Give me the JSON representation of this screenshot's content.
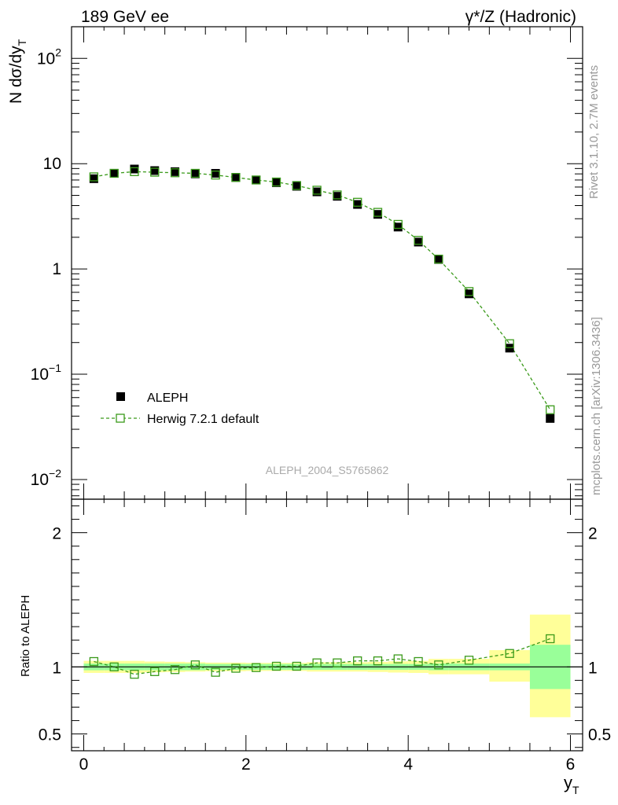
{
  "header": {
    "left_title": "189 GeV ee",
    "right_title": "γ*/Z (Hadronic)"
  },
  "side_labels": {
    "rivet": "Rivet 3.1.10,  2.7M events",
    "mcplots": "mcplots.cern.ch [arXiv:1306.3436]"
  },
  "chart_data": [
    {
      "type": "scatter",
      "panel": "main",
      "yscale": "log",
      "title": "",
      "xlabel": "y",
      "xlabel_sub": "T",
      "ylabel": "N dσ/dy",
      "ylabel_sub": "T",
      "xlim": [
        -0.15,
        6.15
      ],
      "ylim": [
        0.0065,
        200
      ],
      "y_ticks": [
        {
          "value": 0.01,
          "base": "10",
          "exp": "−2"
        },
        {
          "value": 0.1,
          "base": "10",
          "exp": "−1"
        },
        {
          "value": 1,
          "base": "1",
          "exp": ""
        },
        {
          "value": 10,
          "base": "10",
          "exp": ""
        },
        {
          "value": 100,
          "base": "10",
          "exp": "2"
        }
      ],
      "watermark": "ALEPH_2004_S5765862",
      "legend": {
        "placement": "middle-left",
        "entries": [
          "ALEPH",
          "Herwig 7.2.1 default"
        ]
      },
      "x": [
        0.125,
        0.375,
        0.625,
        0.875,
        1.125,
        1.375,
        1.625,
        1.875,
        2.125,
        2.375,
        2.625,
        2.875,
        3.125,
        3.375,
        3.625,
        3.875,
        4.125,
        4.375,
        4.75,
        5.25,
        5.75
      ],
      "bin_edges": [
        0,
        0.25,
        0.5,
        0.75,
        1.0,
        1.25,
        1.5,
        1.75,
        2.0,
        2.25,
        2.5,
        2.75,
        3.0,
        3.25,
        3.5,
        3.75,
        4.0,
        4.25,
        4.5,
        5.0,
        5.5,
        6.0
      ],
      "series": [
        {
          "name": "ALEPH",
          "color": "#000000",
          "marker": "filled-square",
          "values": [
            7.2,
            8.1,
            8.9,
            8.6,
            8.4,
            8.0,
            8.1,
            7.4,
            7.0,
            6.6,
            6.1,
            5.4,
            4.9,
            4.1,
            3.3,
            2.5,
            1.8,
            1.23,
            0.58,
            0.177,
            0.038
          ]
        },
        {
          "name": "Herwig 7.2.1 default",
          "color": "#3a9a1a",
          "marker": "open-square",
          "linestyle": "dashed",
          "values": [
            7.5,
            8.1,
            8.4,
            8.3,
            8.2,
            8.1,
            7.8,
            7.4,
            7.0,
            6.7,
            6.2,
            5.6,
            5.05,
            4.3,
            3.45,
            2.65,
            1.87,
            1.24,
            0.61,
            0.195,
            0.046
          ]
        }
      ]
    },
    {
      "type": "scatter",
      "panel": "ratio",
      "title": "",
      "xlabel": "y",
      "xlabel_sub": "T",
      "ylabel": "Ratio to ALEPH",
      "xlim": [
        -0.15,
        6.15
      ],
      "ylim": [
        0.375,
        2.25
      ],
      "x_ticks": [
        0,
        2,
        4,
        6
      ],
      "y_ticks": [
        0.5,
        1,
        2
      ],
      "band_colors": {
        "stat": "#99ff99",
        "total": "#ffff99"
      },
      "band_stat": [
        [
          0.975,
          1.025
        ],
        [
          0.975,
          1.025
        ],
        [
          0.975,
          1.025
        ],
        [
          0.975,
          1.025
        ],
        [
          0.975,
          1.025
        ],
        [
          0.975,
          1.025
        ],
        [
          0.978,
          1.022
        ],
        [
          0.978,
          1.022
        ],
        [
          0.978,
          1.022
        ],
        [
          0.978,
          1.022
        ],
        [
          0.978,
          1.022
        ],
        [
          0.978,
          1.022
        ],
        [
          0.978,
          1.022
        ],
        [
          0.978,
          1.022
        ],
        [
          0.978,
          1.022
        ],
        [
          0.978,
          1.022
        ],
        [
          0.978,
          1.022
        ],
        [
          0.975,
          1.025
        ],
        [
          0.975,
          1.025
        ],
        [
          0.975,
          1.025
        ],
        [
          0.835,
          1.165
        ]
      ],
      "band_total": [
        [
          0.955,
          1.045
        ],
        [
          0.955,
          1.045
        ],
        [
          0.955,
          1.045
        ],
        [
          0.96,
          1.04
        ],
        [
          0.962,
          1.038
        ],
        [
          0.965,
          1.035
        ],
        [
          0.968,
          1.032
        ],
        [
          0.968,
          1.032
        ],
        [
          0.97,
          1.03
        ],
        [
          0.97,
          1.03
        ],
        [
          0.97,
          1.03
        ],
        [
          0.965,
          1.035
        ],
        [
          0.965,
          1.035
        ],
        [
          0.965,
          1.035
        ],
        [
          0.962,
          1.038
        ],
        [
          0.958,
          1.042
        ],
        [
          0.955,
          1.045
        ],
        [
          0.945,
          1.06
        ],
        [
          0.945,
          1.06
        ],
        [
          0.89,
          1.125
        ],
        [
          0.625,
          1.39
        ]
      ],
      "series": [
        {
          "name": "Herwig 7.2.1 default / ALEPH",
          "color": "#3a9a1a",
          "marker": "open-square",
          "linestyle": "dashed",
          "values": [
            1.04,
            1.0,
            0.945,
            0.965,
            0.98,
            1.015,
            0.96,
            0.99,
            0.995,
            1.005,
            1.005,
            1.03,
            1.03,
            1.045,
            1.045,
            1.06,
            1.04,
            1.015,
            1.05,
            1.1,
            1.21
          ]
        }
      ]
    }
  ]
}
